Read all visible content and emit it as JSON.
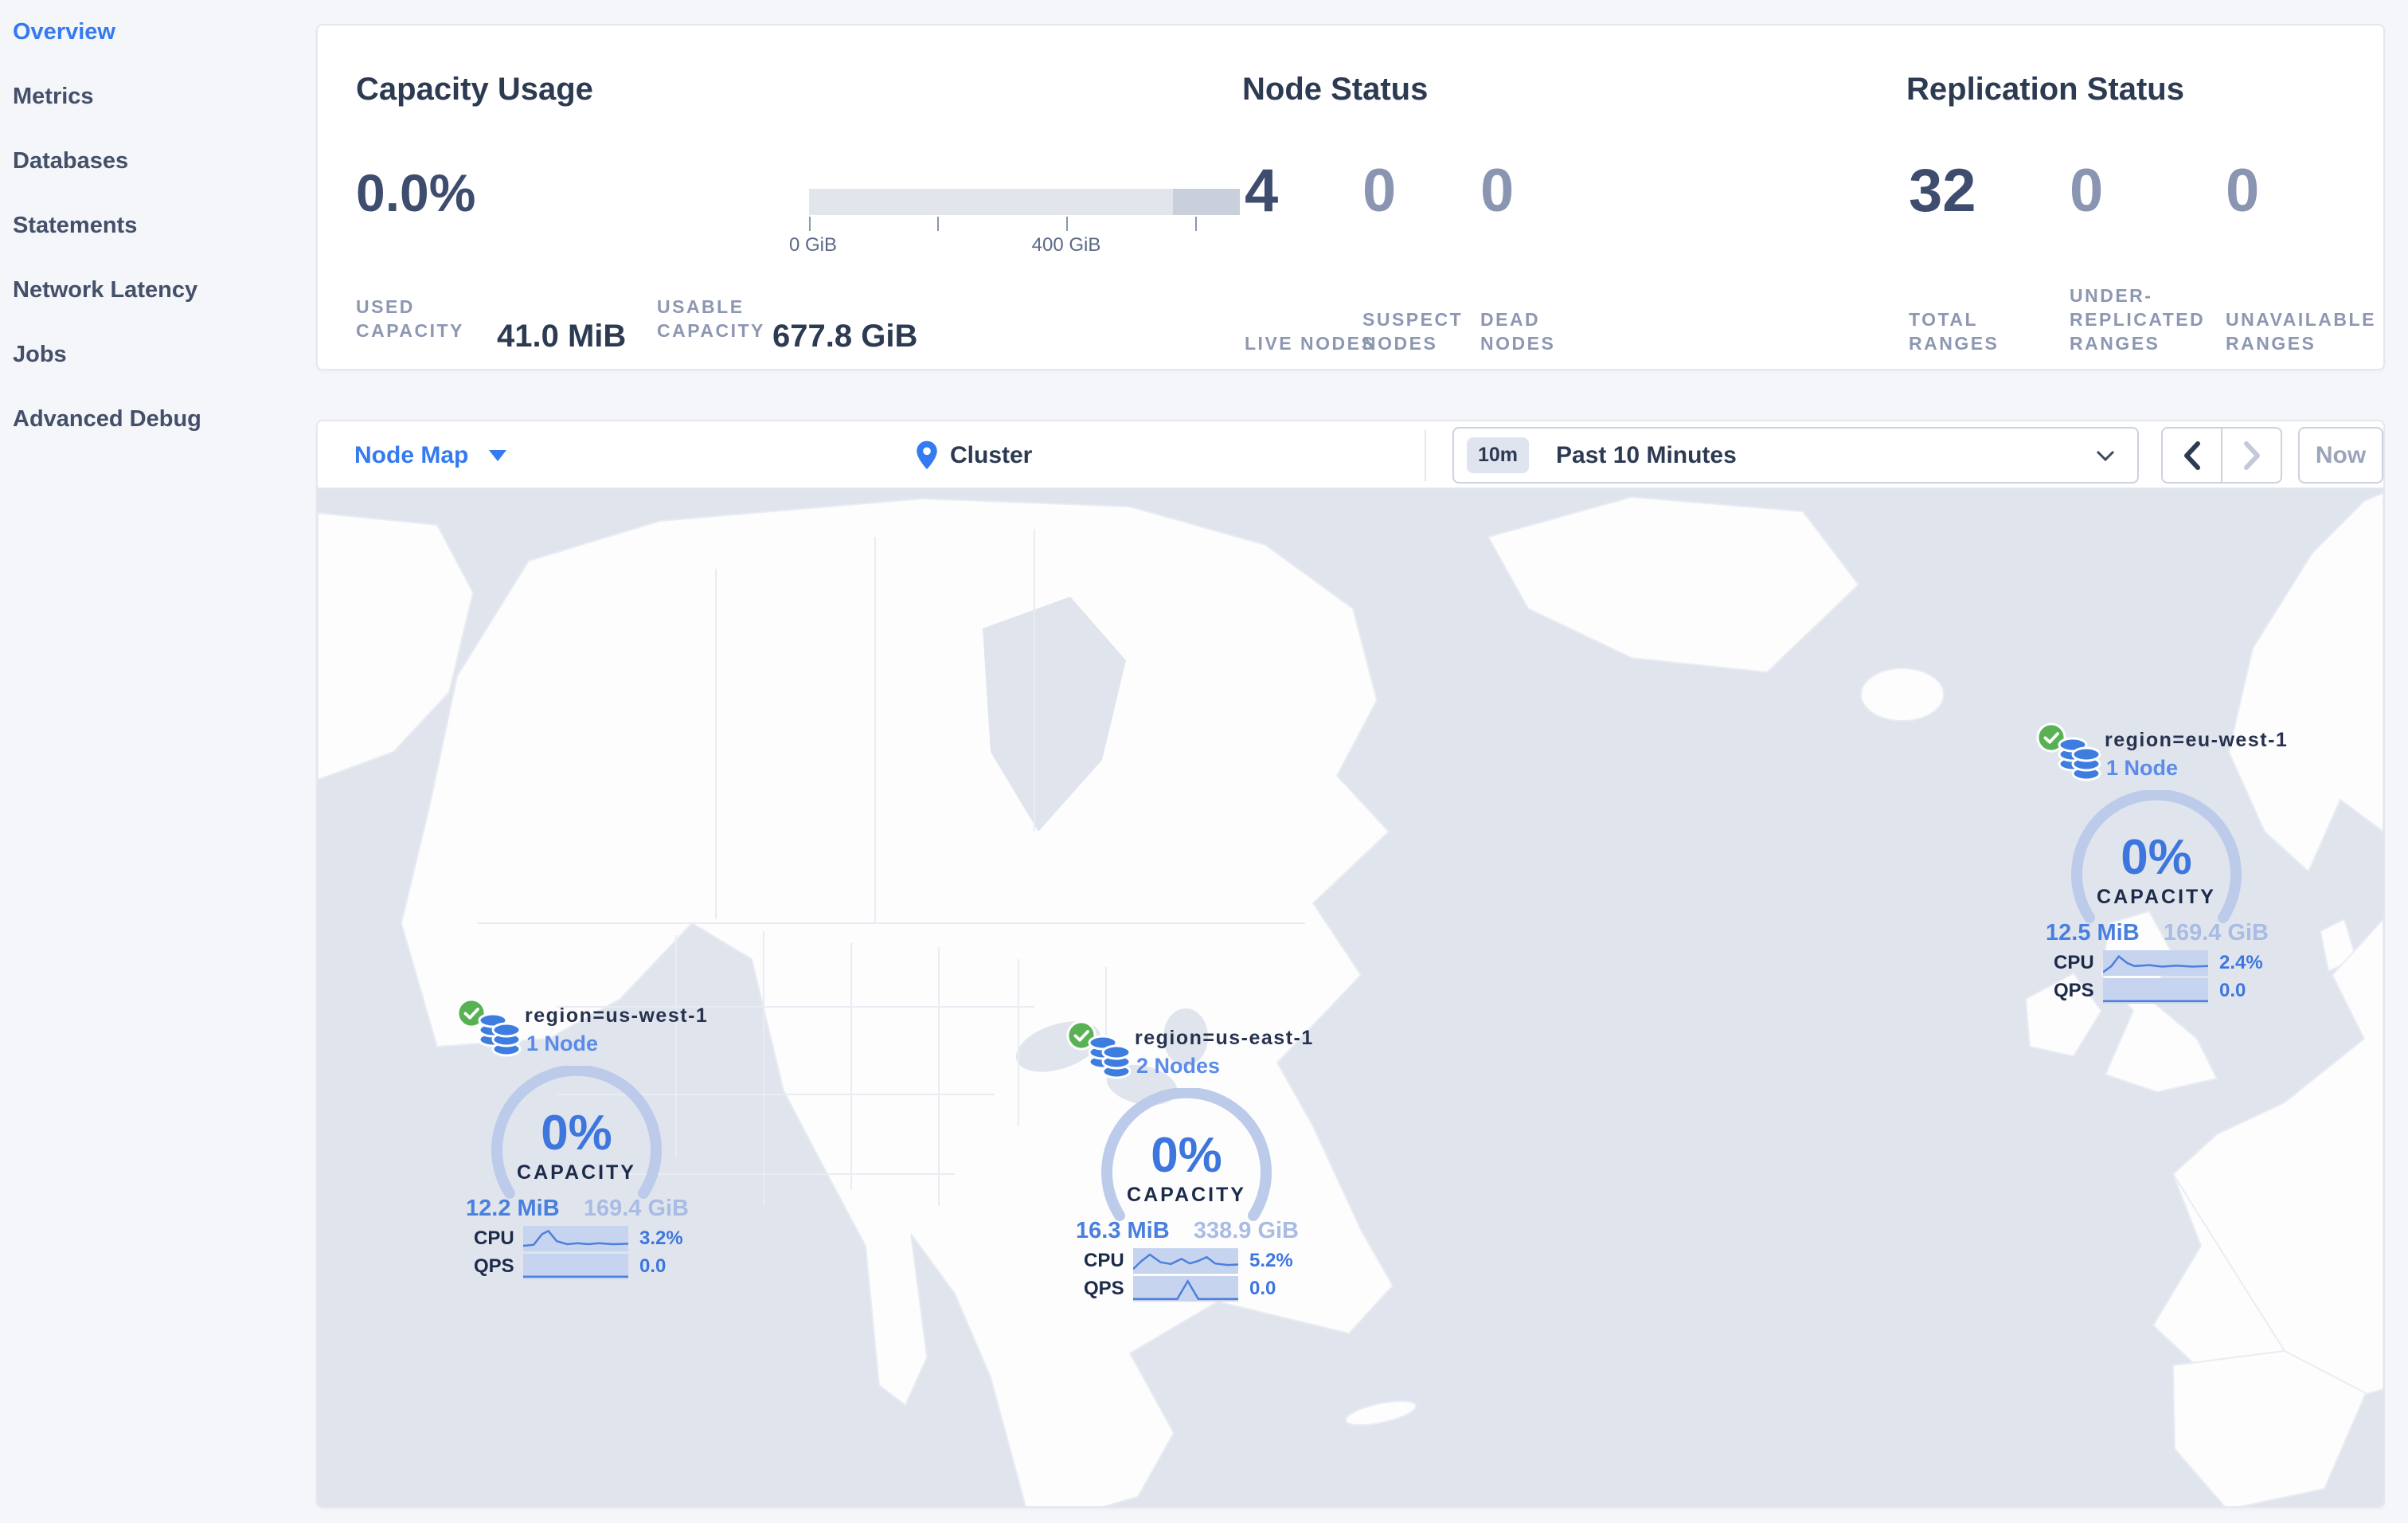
{
  "sidebar": {
    "items": [
      {
        "label": "Overview"
      },
      {
        "label": "Metrics"
      },
      {
        "label": "Databases"
      },
      {
        "label": "Statements"
      },
      {
        "label": "Network Latency"
      },
      {
        "label": "Jobs"
      },
      {
        "label": "Advanced Debug"
      }
    ]
  },
  "summary": {
    "capacity": {
      "title": "Capacity Usage",
      "percent": "0.0%",
      "tick_zero": "0 GiB",
      "tick_mid": "400 GiB",
      "used_label": "Used Capacity",
      "used_value": "41.0 MiB",
      "usable_label": "Usable Capacity",
      "usable_value": "677.8 GiB"
    },
    "nodes": {
      "title": "Node Status",
      "stats": [
        {
          "value": "4",
          "label": "Live Nodes"
        },
        {
          "value": "0",
          "label": "Suspect Nodes"
        },
        {
          "value": "0",
          "label": "Dead Nodes"
        }
      ]
    },
    "replication": {
      "title": "Replication Status",
      "stats": [
        {
          "value": "32",
          "label": "Total Ranges"
        },
        {
          "value": "0",
          "label": "Under-replicated Ranges"
        },
        {
          "value": "0",
          "label": "Unavailable Ranges"
        }
      ]
    }
  },
  "toolbar": {
    "view_label": "Node Map",
    "breadcrumb": "Cluster",
    "range_badge": "10m",
    "range_label": "Past 10 Minutes",
    "now_label": "Now"
  },
  "map": {
    "capacity_label": "CAPACITY",
    "cpu_label": "CPU",
    "qps_label": "QPS",
    "regions": [
      {
        "name": "region=us-west-1",
        "nodes": "1 Node",
        "capacity_pct": "0%",
        "used": "12.2 MiB",
        "total": "169.4 GiB",
        "cpu_value": "3.2%",
        "qps_value": "0.0",
        "cpu_spark": [
          [
            0,
            0.78
          ],
          [
            0.1,
            0.74
          ],
          [
            0.18,
            0.32
          ],
          [
            0.24,
            0.2
          ],
          [
            0.32,
            0.6
          ],
          [
            0.42,
            0.72
          ],
          [
            0.52,
            0.68
          ],
          [
            0.62,
            0.72
          ],
          [
            0.72,
            0.68
          ],
          [
            0.86,
            0.72
          ],
          [
            1,
            0.7
          ]
        ],
        "qps_spark": [
          [
            0,
            0.9
          ],
          [
            1,
            0.9
          ]
        ]
      },
      {
        "name": "region=us-east-1",
        "nodes": "2 Nodes",
        "capacity_pct": "0%",
        "used": "16.3 MiB",
        "total": "338.9 GiB",
        "cpu_value": "5.2%",
        "qps_value": "0.0",
        "cpu_spark": [
          [
            0,
            0.82
          ],
          [
            0.08,
            0.5
          ],
          [
            0.16,
            0.25
          ],
          [
            0.26,
            0.55
          ],
          [
            0.36,
            0.62
          ],
          [
            0.46,
            0.42
          ],
          [
            0.54,
            0.6
          ],
          [
            0.62,
            0.5
          ],
          [
            0.7,
            0.35
          ],
          [
            0.78,
            0.6
          ],
          [
            0.9,
            0.66
          ],
          [
            1,
            0.64
          ]
        ],
        "qps_spark": [
          [
            0,
            0.9
          ],
          [
            0.42,
            0.9
          ],
          [
            0.52,
            0.2
          ],
          [
            0.62,
            0.9
          ],
          [
            1,
            0.9
          ]
        ]
      },
      {
        "name": "region=eu-west-1",
        "nodes": "1 Node",
        "capacity_pct": "0%",
        "used": "12.5 MiB",
        "total": "169.4 GiB",
        "cpu_value": "2.4%",
        "qps_value": "0.0",
        "cpu_spark": [
          [
            0,
            0.86
          ],
          [
            0.08,
            0.62
          ],
          [
            0.15,
            0.24
          ],
          [
            0.23,
            0.5
          ],
          [
            0.3,
            0.62
          ],
          [
            0.44,
            0.58
          ],
          [
            0.56,
            0.64
          ],
          [
            0.7,
            0.6
          ],
          [
            0.85,
            0.64
          ],
          [
            1,
            0.62
          ]
        ],
        "qps_spark": [
          [
            0,
            0.9
          ],
          [
            1,
            0.9
          ]
        ]
      }
    ]
  }
}
